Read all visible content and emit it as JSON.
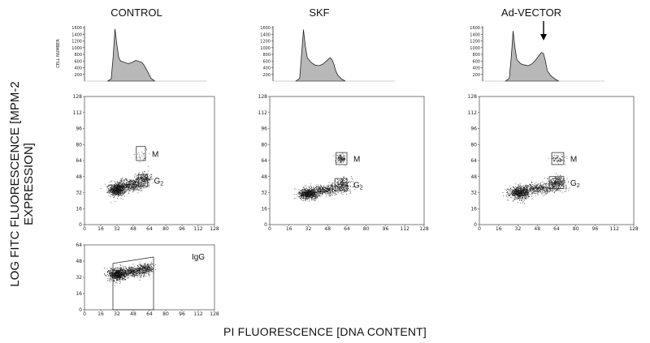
{
  "figure": {
    "y_axis_title": "LOG FITC FLUORESCENCE [MPM-2 EXPRESSION]",
    "x_axis_title": "PI FLUORESCENCE [DNA CONTENT]"
  },
  "chart_data": [
    {
      "type": "area",
      "panel": "CONTROL",
      "title": "CONTROL",
      "ylabel": "CELL NUMBER",
      "y_ticks": [
        200,
        400,
        600,
        800,
        1000,
        1200,
        1400,
        1600
      ],
      "ylim": [
        0,
        1650
      ],
      "x": [
        24,
        28,
        30,
        32,
        34,
        36,
        38,
        42,
        46,
        50,
        54,
        56,
        60,
        62,
        64,
        66,
        70,
        74
      ],
      "values": [
        0,
        60,
        700,
        1560,
        1100,
        700,
        600,
        560,
        520,
        560,
        620,
        600,
        560,
        500,
        400,
        300,
        80,
        0
      ]
    },
    {
      "type": "area",
      "panel": "SKF",
      "title": "SKF",
      "ylabel": "",
      "y_ticks": [
        200,
        400,
        600,
        800,
        1000,
        1200,
        1400,
        1600
      ],
      "ylim": [
        0,
        1650
      ],
      "x": [
        24,
        28,
        30,
        32,
        34,
        36,
        40,
        44,
        48,
        52,
        56,
        60,
        62,
        64,
        66,
        68,
        72,
        76
      ],
      "values": [
        0,
        80,
        800,
        1540,
        1050,
        700,
        560,
        480,
        460,
        500,
        600,
        700,
        640,
        500,
        300,
        180,
        60,
        0
      ]
    },
    {
      "type": "area",
      "panel": "Ad-VECTOR",
      "title": "Ad-VECTOR",
      "ylabel": "",
      "y_ticks": [
        200,
        400,
        600,
        800,
        1000,
        1200,
        1400,
        1600
      ],
      "ylim": [
        0,
        1650
      ],
      "annotation": "arrow marking the G2/M peak",
      "x": [
        24,
        28,
        30,
        32,
        34,
        36,
        40,
        44,
        48,
        52,
        56,
        60,
        62,
        64,
        66,
        68,
        72,
        76,
        80
      ],
      "values": [
        0,
        80,
        700,
        1500,
        1000,
        640,
        520,
        480,
        460,
        520,
        640,
        800,
        860,
        820,
        600,
        300,
        150,
        60,
        0
      ]
    },
    {
      "type": "scatter",
      "panel": "CONTROL",
      "x_ticks": [
        0,
        16,
        32,
        48,
        64,
        80,
        96,
        112,
        128
      ],
      "y_ticks": [
        0,
        16,
        32,
        48,
        64,
        80,
        96,
        112,
        128
      ],
      "xlim": [
        0,
        128
      ],
      "ylim": [
        0,
        128
      ],
      "gates": [
        {
          "label": "M",
          "sub": "",
          "x": [
            51,
            60
          ],
          "y": [
            64,
            78
          ]
        },
        {
          "label": "G",
          "sub": "2",
          "x": [
            53,
            62
          ],
          "y": [
            38,
            50
          ]
        }
      ],
      "clusters": [
        {
          "x": 32,
          "y": 35,
          "sx": 4,
          "sy": 3,
          "n": 700
        },
        {
          "x": 45,
          "y": 40,
          "sx": 8,
          "sy": 3,
          "n": 500
        },
        {
          "x": 58,
          "y": 46,
          "sx": 4,
          "sy": 3,
          "n": 250
        },
        {
          "x": 56,
          "y": 70,
          "sx": 3,
          "sy": 4,
          "n": 25
        }
      ]
    },
    {
      "type": "scatter",
      "panel": "SKF",
      "x_ticks": [
        0,
        16,
        32,
        48,
        64,
        80,
        96,
        112,
        128
      ],
      "y_ticks": [
        0,
        16,
        32,
        48,
        64,
        80,
        96,
        112,
        128
      ],
      "xlim": [
        0,
        128
      ],
      "ylim": [
        0,
        128
      ],
      "gates": [
        {
          "label": "M",
          "sub": "",
          "x": [
            55,
            64
          ],
          "y": [
            60,
            72
          ]
        },
        {
          "label": "G",
          "sub": "2",
          "x": [
            54,
            64
          ],
          "y": [
            34,
            46
          ]
        }
      ],
      "clusters": [
        {
          "x": 32,
          "y": 31,
          "sx": 4,
          "sy": 2.5,
          "n": 700
        },
        {
          "x": 46,
          "y": 35,
          "sx": 8,
          "sy": 2.5,
          "n": 450
        },
        {
          "x": 60,
          "y": 40,
          "sx": 4,
          "sy": 3,
          "n": 250
        },
        {
          "x": 59,
          "y": 66,
          "sx": 2,
          "sy": 2,
          "n": 120
        }
      ]
    },
    {
      "type": "scatter",
      "panel": "Ad-VECTOR",
      "x_ticks": [
        0,
        16,
        32,
        48,
        64,
        80,
        96,
        112,
        128
      ],
      "y_ticks": [
        0,
        16,
        32,
        48,
        64,
        80,
        96,
        112,
        128
      ],
      "xlim": [
        0,
        128
      ],
      "ylim": [
        0,
        128
      ],
      "gates": [
        {
          "label": "M",
          "sub": "",
          "x": [
            60,
            70
          ],
          "y": [
            60,
            72
          ]
        },
        {
          "label": "G",
          "sub": "2",
          "x": [
            58,
            70
          ],
          "y": [
            36,
            48
          ]
        }
      ],
      "clusters": [
        {
          "x": 33,
          "y": 32,
          "sx": 4,
          "sy": 3,
          "n": 650
        },
        {
          "x": 48,
          "y": 36,
          "sx": 8,
          "sy": 2.5,
          "n": 450
        },
        {
          "x": 64,
          "y": 42,
          "sx": 4,
          "sy": 3,
          "n": 350
        },
        {
          "x": 65,
          "y": 66,
          "sx": 3,
          "sy": 2,
          "n": 70
        }
      ]
    },
    {
      "type": "scatter",
      "panel": "CONTROL IgG",
      "x_ticks": [
        0,
        16,
        32,
        48,
        64,
        80,
        96,
        112,
        128
      ],
      "y_ticks": [
        0,
        16,
        32,
        48,
        64
      ],
      "xlim": [
        0,
        128
      ],
      "ylim": [
        0,
        64
      ],
      "gates": [
        {
          "label": "IgG",
          "sub": "",
          "x": [
            28,
            68
          ],
          "y": [
            0,
            52
          ]
        }
      ],
      "clusters": [
        {
          "x": 32,
          "y": 35,
          "sx": 4,
          "sy": 3,
          "n": 700
        },
        {
          "x": 46,
          "y": 38,
          "sx": 8,
          "sy": 2.5,
          "n": 500
        },
        {
          "x": 60,
          "y": 41,
          "sx": 4,
          "sy": 2.5,
          "n": 250
        }
      ]
    }
  ]
}
